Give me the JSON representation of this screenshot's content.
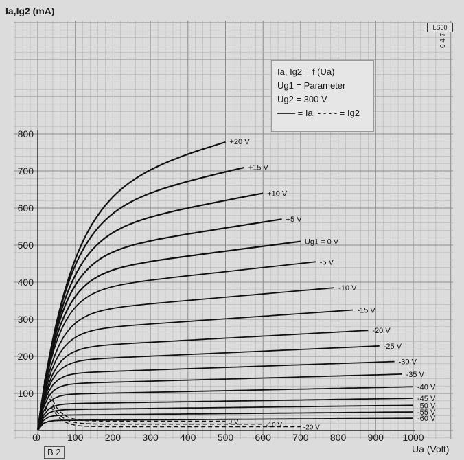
{
  "chart_data": {
    "type": "line",
    "ylabel": "Ia,Ig2 (mA)",
    "xlabel": "Ua (Volt)",
    "xlim": [
      0,
      1000
    ],
    "ylim": [
      0,
      800
    ],
    "xticks": [
      0,
      100,
      200,
      300,
      400,
      500,
      600,
      700,
      800,
      900,
      1000
    ],
    "yticks": [
      100,
      200,
      300,
      400,
      500,
      600,
      700,
      800
    ],
    "grid": true,
    "legend": {
      "lines": [
        "Ia, Ig2 = f (Ua)",
        "Ug1 = Parameter",
        "Ug2 = 300 V",
        "—— = Ia, - - - - = Ig2"
      ]
    },
    "anode_series": [
      {
        "name": "+20 V",
        "label": "+20 V",
        "xknee": 85,
        "ylimit": 780,
        "xend": 500
      },
      {
        "name": "+15 V",
        "label": "+15 V",
        "xknee": 75,
        "ylimit": 710,
        "xend": 550
      },
      {
        "name": "+10 V",
        "label": "+10 V",
        "xknee": 68,
        "ylimit": 640,
        "xend": 600
      },
      {
        "name": "+5 V",
        "label": "+5 V",
        "xknee": 60,
        "ylimit": 570,
        "xend": 650
      },
      {
        "name": "0 V",
        "label": "Ug1 = 0 V",
        "xknee": 55,
        "ylimit": 510,
        "xend": 700
      },
      {
        "name": "-5 V",
        "label": "-5 V",
        "xknee": 50,
        "ylimit": 455,
        "xend": 740
      },
      {
        "name": "-10 V",
        "label": "-10 V",
        "xknee": 45,
        "ylimit": 385,
        "xend": 790
      },
      {
        "name": "-15 V",
        "label": "-15 V",
        "xknee": 40,
        "ylimit": 325,
        "xend": 840
      },
      {
        "name": "-20 V",
        "label": "-20 V",
        "xknee": 35,
        "ylimit": 270,
        "xend": 880
      },
      {
        "name": "-25 V",
        "label": "-25 V",
        "xknee": 30,
        "ylimit": 228,
        "xend": 910
      },
      {
        "name": "-30 V",
        "label": "-30 V",
        "xknee": 25,
        "ylimit": 186,
        "xend": 950
      },
      {
        "name": "-35 V",
        "label": "-35 V",
        "xknee": 22,
        "ylimit": 152,
        "xend": 970
      },
      {
        "name": "-40 V",
        "label": "-40 V",
        "xknee": 20,
        "ylimit": 118,
        "xend": 1000
      },
      {
        "name": "-45 V",
        "label": "-45 V",
        "xknee": 18,
        "ylimit": 87,
        "xend": 1000
      },
      {
        "name": "-50 V",
        "label": "-50 V",
        "xknee": 16,
        "ylimit": 68,
        "xend": 1000
      },
      {
        "name": "-55 V",
        "label": "-55 V",
        "xknee": 14,
        "ylimit": 50,
        "xend": 1000
      },
      {
        "name": "-60 V",
        "label": "-60 V",
        "xknee": 12,
        "ylimit": 33,
        "xend": 1000
      }
    ],
    "screen_series": [
      {
        "name": "Ig2 0 V",
        "label": "0 V",
        "ypeak": 150,
        "xpeak": 20,
        "ytail": 25,
        "xend": 500
      },
      {
        "name": "Ig2 -10 V",
        "label": "-10 V",
        "ypeak": 110,
        "xpeak": 25,
        "ytail": 17,
        "xend": 600
      },
      {
        "name": "Ig2 -20 V",
        "label": "-20 V",
        "ypeak": 80,
        "xpeak": 30,
        "ytail": 10,
        "xend": 700
      }
    ]
  },
  "labels": {
    "fig": "B 2",
    "code": "LS50",
    "code_rot": "0 4 7",
    "legend_l1": "Ia, Ig2 = f (Ua)",
    "legend_l2": "Ug1 = Parameter",
    "legend_l3": "Ug2 = 300 V",
    "legend_l4": "—— = Ia, - - - - = Ig2",
    "y_title": "Ia,Ig2 (mA)",
    "x_title": "Ua (Volt)"
  }
}
